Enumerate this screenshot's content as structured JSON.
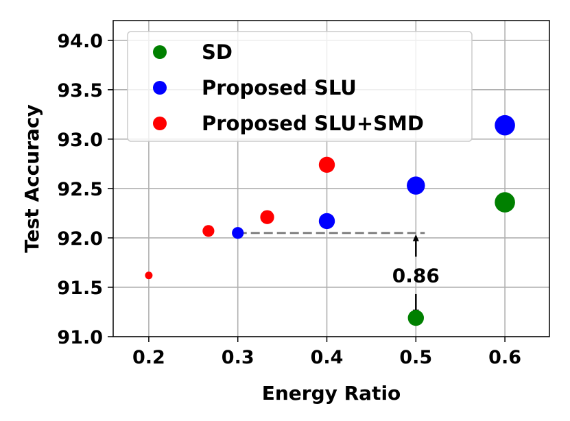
{
  "chart_data": {
    "type": "scatter",
    "title": "",
    "xlabel": "Energy Ratio",
    "ylabel": "Test Accuracy",
    "xlim": [
      0.16,
      0.65
    ],
    "ylim": [
      91.0,
      94.2
    ],
    "xticks": [
      0.2,
      0.3,
      0.4,
      0.5,
      0.6
    ],
    "xtick_labels": [
      "0.2",
      "0.3",
      "0.4",
      "0.5",
      "0.6"
    ],
    "yticks": [
      91.0,
      91.5,
      92.0,
      92.5,
      93.0,
      93.5,
      94.0
    ],
    "ytick_labels": [
      "91.0",
      "91.5",
      "92.0",
      "92.5",
      "93.0",
      "93.5",
      "94.0"
    ],
    "grid": true,
    "legend_position": "top-left",
    "series": [
      {
        "name": "SD",
        "color": "#008000",
        "points": [
          {
            "x": 0.5,
            "y": 91.19,
            "size": 3
          },
          {
            "x": 0.6,
            "y": 92.36,
            "size": 4
          }
        ]
      },
      {
        "name": "Proposed SLU",
        "color": "#0000ff",
        "points": [
          {
            "x": 0.3,
            "y": 92.05,
            "size": 2
          },
          {
            "x": 0.4,
            "y": 92.17,
            "size": 3
          },
          {
            "x": 0.5,
            "y": 92.53,
            "size": 3.5
          },
          {
            "x": 0.6,
            "y": 93.14,
            "size": 4
          }
        ]
      },
      {
        "name": "Proposed SLU+SMD",
        "color": "#ff0000",
        "points": [
          {
            "x": 0.2,
            "y": 91.62,
            "size": 1
          },
          {
            "x": 0.267,
            "y": 92.07,
            "size": 2
          },
          {
            "x": 0.333,
            "y": 92.21,
            "size": 2.5
          },
          {
            "x": 0.4,
            "y": 92.74,
            "size": 3
          }
        ]
      }
    ],
    "annotations": {
      "reference_line": {
        "x_start": 0.3,
        "x_end": 0.51,
        "y": 92.05,
        "color": "#808080",
        "style": "dashed"
      },
      "difference_arrow": {
        "x": 0.5,
        "y_from": 91.19,
        "y_to": 92.05,
        "label": "0.86"
      }
    }
  }
}
